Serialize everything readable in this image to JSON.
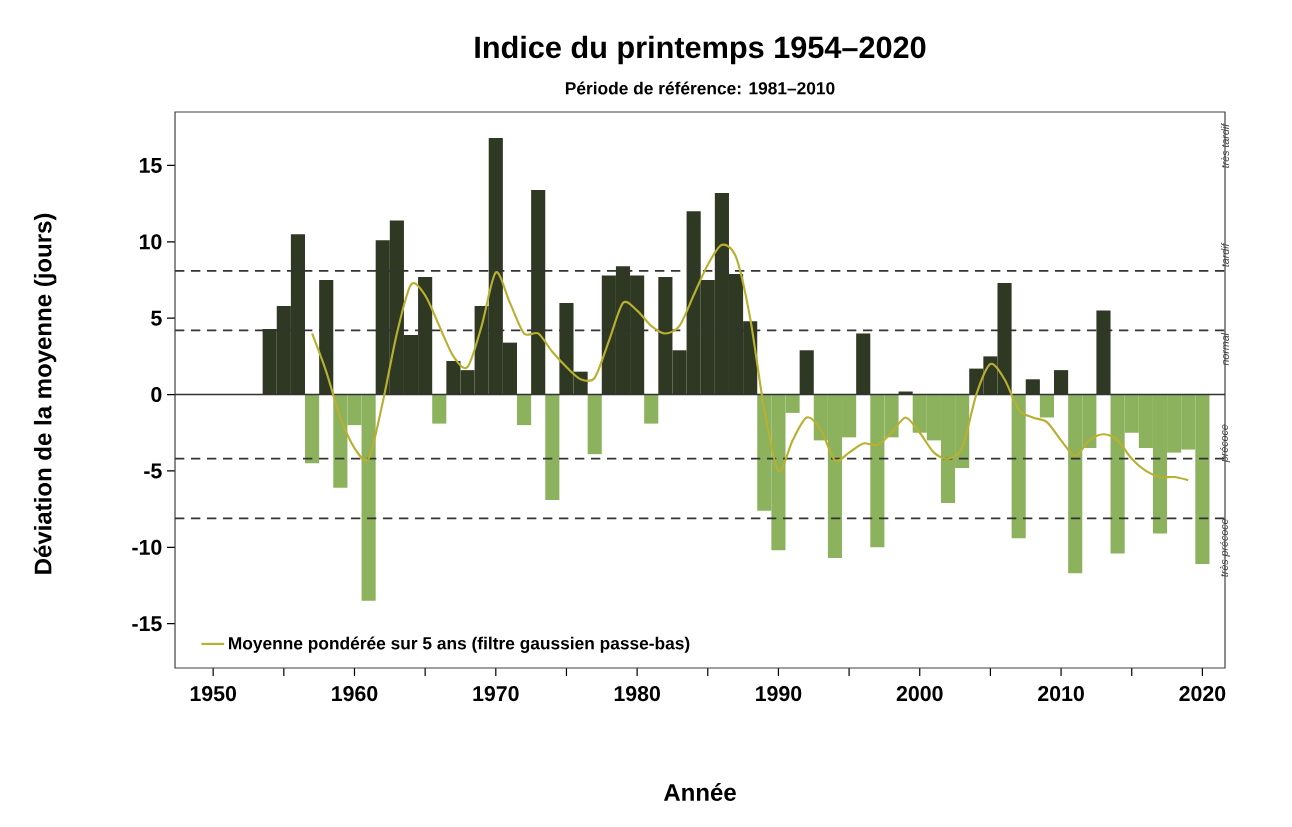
{
  "chart_data": {
    "type": "bar",
    "title": "Indice du printemps 1954–2020",
    "subtitle": "Période de référence: 1981–2010",
    "xlabel": "Année",
    "ylabel": "Déviation de la moyenne (jours)",
    "xlim": [
      1947.3,
      2021.6
    ],
    "ylim": [
      -17.9,
      18.5
    ],
    "xticks": [
      1950,
      {
        "value": 1955,
        "label": null
      },
      1960,
      {
        "value": 1965,
        "label": null
      },
      1970,
      {
        "value": 1975,
        "label": null
      },
      1980,
      {
        "value": 1985,
        "label": null
      },
      1990,
      {
        "value": 1995,
        "label": null
      },
      2000,
      {
        "value": 2005,
        "label": null
      },
      2010,
      {
        "value": 2015,
        "label": null
      },
      2020
    ],
    "yticks": [
      -15,
      -10,
      -5,
      0,
      5,
      10,
      15
    ],
    "legend": "bottom left",
    "series": [
      {
        "x": [
          1954,
          1955,
          1956,
          1957,
          1958,
          1959,
          1960,
          1961,
          1962,
          1963,
          1964,
          1965,
          1966,
          1967,
          1968,
          1969,
          1970,
          1971,
          1972,
          1973,
          1974,
          1975,
          1976,
          1977,
          1978,
          1979,
          1980,
          1981,
          1982,
          1983,
          1984,
          1985,
          1986,
          1987,
          1988,
          1989,
          1990,
          1991,
          1992,
          1993,
          1994,
          1995,
          1996,
          1997,
          1998,
          1999,
          2000,
          2001,
          2002,
          2003,
          2004,
          2005,
          2006,
          2007,
          2008,
          2009,
          2010,
          2011,
          2012,
          2013,
          2014,
          2015,
          2016,
          2017,
          2018,
          2019,
          2020
        ],
        "values": [
          4.3,
          5.8,
          10.5,
          -4.5,
          7.5,
          -6.1,
          -2.0,
          -13.5,
          10.1,
          11.4,
          3.9,
          7.7,
          -1.9,
          2.2,
          1.6,
          5.8,
          16.8,
          3.4,
          -2.0,
          13.4,
          -6.9,
          6.0,
          1.5,
          -3.9,
          7.8,
          8.4,
          7.8,
          -1.9,
          7.7,
          2.9,
          12.0,
          7.5,
          13.2,
          7.9,
          4.8,
          -7.6,
          -10.2,
          -1.2,
          2.9,
          -3.0,
          -10.7,
          -2.8,
          4.0,
          -10.0,
          -2.8,
          0.2,
          -2.5,
          -3.0,
          -7.1,
          -4.8,
          1.7,
          2.5,
          7.3,
          -9.4,
          1.0,
          -1.5,
          1.6,
          -11.7,
          -3.5,
          5.5,
          -10.4,
          -2.5,
          -3.5,
          -9.1,
          -3.8,
          -3.6,
          -11.1
        ],
        "colors": [
          "#2e3822",
          "#2e3822",
          "#2e3822",
          "#8db25e",
          "#2e3822",
          "#8db25e",
          "#8db25e",
          "#8db25e",
          "#2e3822",
          "#2e3822",
          "#2e3822",
          "#2e3822",
          "#8db25e",
          "#2e3822",
          "#2e3822",
          "#2e3822",
          "#2e3822",
          "#2e3822",
          "#8db25e",
          "#2e3822",
          "#8db25e",
          "#2e3822",
          "#2e3822",
          "#8db25e",
          "#2e3822",
          "#2e3822",
          "#2e3822",
          "#8db25e",
          "#2e3822",
          "#2e3822",
          "#2e3822",
          "#2e3822",
          "#2e3822",
          "#2e3822",
          "#2e3822",
          "#8db25e",
          "#8db25e",
          "#8db25e",
          "#2e3822",
          "#8db25e",
          "#8db25e",
          "#8db25e",
          "#2e3822",
          "#8db25e",
          "#8db25e",
          "#2e3822",
          "#8db25e",
          "#8db25e",
          "#8db25e",
          "#8db25e",
          "#2e3822",
          "#2e3822",
          "#2e3822",
          "#8db25e",
          "#2e3822",
          "#8db25e",
          "#2e3822",
          "#8db25e",
          "#8db25e",
          "#2e3822",
          "#8db25e",
          "#8db25e",
          "#8db25e",
          "#8db25e",
          "#8db25e",
          "#8db25e",
          "#8db25e"
        ]
      },
      {
        "type": "line",
        "name": "Moyenne pondérée sur 5 ans (filtre gaussien passe-bas)",
        "color": "#b8b030",
        "x": [
          1957,
          1958,
          1959,
          1960,
          1961,
          1962,
          1963,
          1964,
          1965,
          1966,
          1967,
          1968,
          1969,
          1970,
          1971,
          1972,
          1973,
          1974,
          1975,
          1976,
          1977,
          1978,
          1979,
          1980,
          1981,
          1982,
          1983,
          1984,
          1985,
          1986,
          1987,
          1988,
          1989,
          1990,
          1991,
          1992,
          1993,
          1994,
          1995,
          1996,
          1997,
          1998,
          1999,
          2000,
          2001,
          2002,
          2003,
          2004,
          2005,
          2006,
          2007,
          2008,
          2009,
          2010,
          2011,
          2012,
          2013,
          2014,
          2015,
          2016,
          2017,
          2018,
          2019
        ],
        "values": [
          4.0,
          1.5,
          -1.5,
          -3.5,
          -4.2,
          -0.5,
          4.0,
          7.2,
          6.5,
          4.5,
          2.5,
          1.8,
          4.5,
          8.0,
          6.0,
          4.0,
          4.0,
          2.8,
          1.8,
          1.0,
          1.1,
          3.5,
          6.0,
          5.5,
          4.5,
          4.0,
          4.5,
          6.5,
          8.5,
          9.8,
          9.0,
          5.0,
          -1.0,
          -5.0,
          -3.0,
          -1.5,
          -2.3,
          -4.3,
          -3.8,
          -3.2,
          -3.3,
          -2.5,
          -1.5,
          -2.5,
          -3.8,
          -4.2,
          -3.5,
          0.0,
          2.0,
          1.0,
          -1.0,
          -1.5,
          -1.8,
          -3.0,
          -4.0,
          -3.0,
          -2.6,
          -3.0,
          -4.2,
          -5.0,
          -5.4,
          -5.4,
          -5.6
        ]
      }
    ],
    "ref_lines": [
      {
        "axis": "y",
        "value": 0,
        "line_style": "solid"
      },
      {
        "axis": "y",
        "value": 8.1,
        "line_style": "dashed"
      },
      {
        "axis": "y",
        "value": 4.2,
        "line_style": "dashed"
      },
      {
        "axis": "y",
        "value": -4.2,
        "line_style": "dashed"
      },
      {
        "axis": "y",
        "value": -8.1,
        "line_style": "dashed"
      }
    ],
    "annotations": [
      "très tardif",
      "tardif",
      "normal",
      "précoce",
      "très précoce"
    ]
  }
}
